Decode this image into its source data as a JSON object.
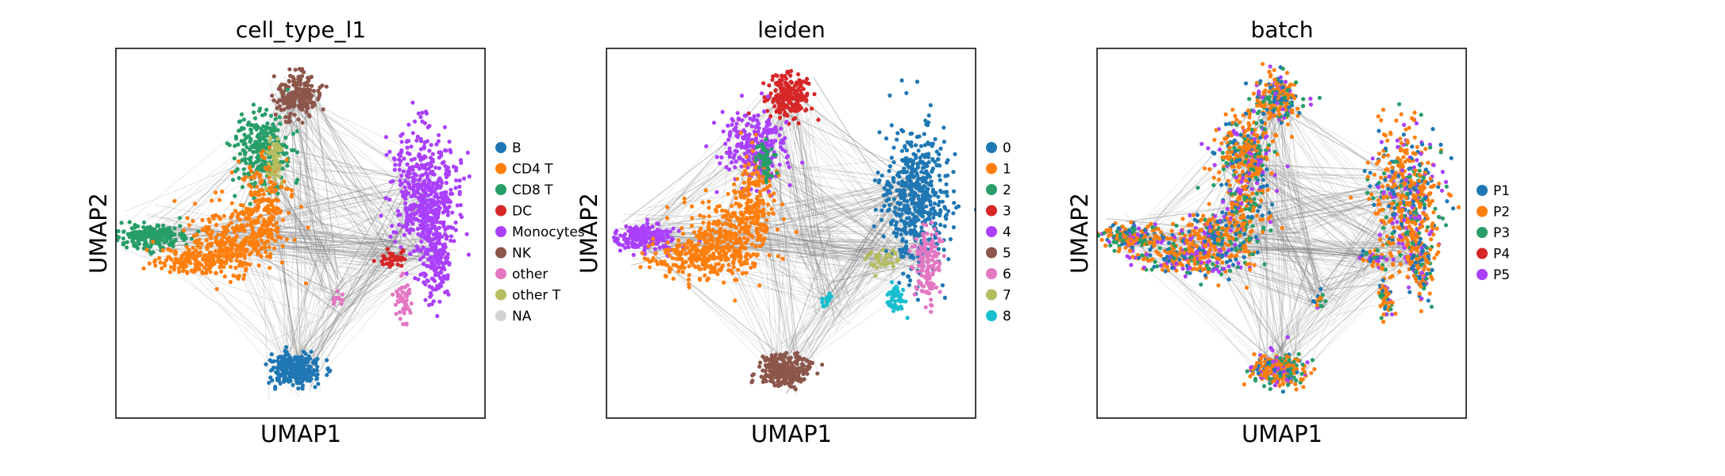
{
  "chart_data": [
    {
      "type": "scatter",
      "title": "cell_type_l1",
      "xlabel": "UMAP1",
      "ylabel": "UMAP2",
      "grid": false,
      "legend_position": "right",
      "legend": [
        {
          "name": "B",
          "color": "#1f77b4"
        },
        {
          "name": "CD4 T",
          "color": "#ff7f0e"
        },
        {
          "name": "CD8 T",
          "color": "#279e68"
        },
        {
          "name": "DC",
          "color": "#d62728"
        },
        {
          "name": "Monocytes",
          "color": "#aa40fc"
        },
        {
          "name": "NK",
          "color": "#8c564b"
        },
        {
          "name": "other",
          "color": "#e377c2"
        },
        {
          "name": "other T",
          "color": "#b5bd61"
        },
        {
          "name": "NA",
          "color": "#d3d3d3"
        }
      ]
    },
    {
      "type": "scatter",
      "title": "leiden",
      "xlabel": "UMAP1",
      "ylabel": "UMAP2",
      "grid": false,
      "legend_position": "right",
      "legend": [
        {
          "name": "0",
          "color": "#1f77b4"
        },
        {
          "name": "1",
          "color": "#ff7f0e"
        },
        {
          "name": "2",
          "color": "#279e68"
        },
        {
          "name": "3",
          "color": "#d62728"
        },
        {
          "name": "4",
          "color": "#aa40fc"
        },
        {
          "name": "5",
          "color": "#8c564b"
        },
        {
          "name": "6",
          "color": "#e377c2"
        },
        {
          "name": "7",
          "color": "#b5bd61"
        },
        {
          "name": "8",
          "color": "#17becf"
        }
      ]
    },
    {
      "type": "scatter",
      "title": "batch",
      "xlabel": "UMAP1",
      "ylabel": "UMAP2",
      "grid": false,
      "legend_position": "right",
      "legend": [
        {
          "name": "P1",
          "color": "#1f77b4"
        },
        {
          "name": "P2",
          "color": "#ff7f0e"
        },
        {
          "name": "P3",
          "color": "#279e68"
        },
        {
          "name": "P4",
          "color": "#d62728"
        },
        {
          "name": "P5",
          "color": "#aa40fc"
        }
      ]
    }
  ],
  "edge_color": "#808080"
}
